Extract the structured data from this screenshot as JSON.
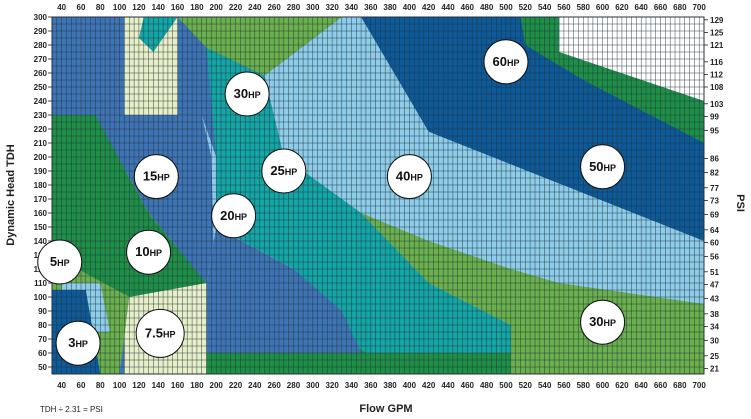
{
  "chart_data": {
    "type": "heatmap",
    "xlabel": "Flow GPM",
    "ylabel": "Dynamic Head TDH",
    "y2label": "PSI",
    "footnote": "TDH ÷ 2.31 = PSI",
    "xlim": [
      30,
      705
    ],
    "ylim": [
      45,
      300
    ],
    "x_ticks": [
      "40",
      "60",
      "80",
      "100",
      "120",
      "140",
      "160",
      "180",
      "200",
      "220",
      "240",
      "260",
      "280",
      "300",
      "320",
      "340",
      "360",
      "380",
      "400",
      "420",
      "440",
      "460",
      "480",
      "500",
      "520",
      "540",
      "560",
      "580",
      "600",
      "620",
      "640",
      "660",
      "680",
      "700"
    ],
    "y_ticks": [
      "300",
      "290",
      "280",
      "270",
      "260",
      "250",
      "240",
      "230",
      "220",
      "210",
      "200",
      "190",
      "180",
      "170",
      "160",
      "150",
      "140",
      "130",
      "120",
      "110",
      "100",
      "90",
      "80",
      "70",
      "60",
      "50"
    ],
    "psi_ticks": [
      {
        "label": "129",
        "tdh": 298
      },
      {
        "label": "125",
        "tdh": 289
      },
      {
        "label": "121",
        "tdh": 280
      },
      {
        "label": "116",
        "tdh": 268
      },
      {
        "label": "112",
        "tdh": 259
      },
      {
        "label": "108",
        "tdh": 250
      },
      {
        "label": "103",
        "tdh": 238
      },
      {
        "label": "99",
        "tdh": 229
      },
      {
        "label": "95",
        "tdh": 219
      },
      {
        "label": "86",
        "tdh": 199
      },
      {
        "label": "82",
        "tdh": 189
      },
      {
        "label": "77",
        "tdh": 178
      },
      {
        "label": "73",
        "tdh": 169
      },
      {
        "label": "69",
        "tdh": 159
      },
      {
        "label": "64",
        "tdh": 148
      },
      {
        "label": "60",
        "tdh": 139
      },
      {
        "label": "56",
        "tdh": 129
      },
      {
        "label": "51",
        "tdh": 118
      },
      {
        "label": "47",
        "tdh": 109
      },
      {
        "label": "43",
        "tdh": 99
      },
      {
        "label": "38",
        "tdh": 88
      },
      {
        "label": "34",
        "tdh": 79
      },
      {
        "label": "30",
        "tdh": 69
      },
      {
        "label": "25",
        "tdh": 58
      },
      {
        "label": "21",
        "tdh": 49
      }
    ],
    "colors": {
      "mid_blue": "#3d74b6",
      "dark_blue": "#0c5a9a",
      "green_med": "#6ab04c",
      "green_dark": "#1d8f46",
      "teal": "#12a6a6",
      "light_blue": "#8dcdea",
      "cream": "#e6efc8",
      "white": "#ffffff",
      "grid": "#26323a"
    },
    "regions": [
      {
        "color": "mid_blue",
        "points": [
          [
            30,
            300
          ],
          [
            105,
            300
          ],
          [
            105,
            45
          ],
          [
            30,
            45
          ]
        ]
      },
      {
        "color": "cream",
        "points": [
          [
            105,
            300
          ],
          [
            160,
            300
          ],
          [
            160,
            45
          ],
          [
            105,
            45
          ]
        ]
      },
      {
        "color": "teal",
        "points": [
          [
            125,
            300
          ],
          [
            160,
            300
          ],
          [
            135,
            275
          ],
          [
            120,
            285
          ]
        ]
      },
      {
        "color": "green_med",
        "points": [
          [
            160,
            300
          ],
          [
            330,
            300
          ],
          [
            250,
            258
          ],
          [
            190,
            278
          ]
        ]
      },
      {
        "color": "light_blue",
        "points": [
          [
            330,
            300
          ],
          [
            350,
            300
          ],
          [
            440,
            200
          ],
          [
            270,
            200
          ],
          [
            250,
            258
          ]
        ]
      },
      {
        "color": "teal",
        "points": [
          [
            190,
            278
          ],
          [
            250,
            258
          ],
          [
            270,
            200
          ],
          [
            200,
            200
          ]
        ]
      },
      {
        "color": "dark_blue",
        "points": [
          [
            350,
            300
          ],
          [
            555,
            300
          ],
          [
            555,
            275
          ],
          [
            705,
            240
          ],
          [
            705,
            140
          ],
          [
            420,
            218
          ]
        ]
      },
      {
        "color": "green_dark",
        "points": [
          [
            515,
            300
          ],
          [
            555,
            300
          ],
          [
            555,
            275
          ],
          [
            705,
            240
          ],
          [
            705,
            210
          ],
          [
            580,
            255
          ],
          [
            520,
            280
          ]
        ]
      },
      {
        "color": "green_dark",
        "points": [
          [
            30,
            230
          ],
          [
            75,
            230
          ],
          [
            130,
            160
          ],
          [
            190,
            110
          ],
          [
            190,
            45
          ],
          [
            130,
            45
          ],
          [
            110,
            100
          ],
          [
            30,
            130
          ]
        ]
      },
      {
        "color": "mid_blue",
        "points": [
          [
            75,
            230
          ],
          [
            185,
            230
          ],
          [
            195,
            200
          ],
          [
            190,
            110
          ],
          [
            130,
            160
          ]
        ]
      },
      {
        "color": "green_med",
        "points": [
          [
            30,
            130
          ],
          [
            110,
            100
          ],
          [
            100,
            45
          ],
          [
            30,
            45
          ]
        ]
      },
      {
        "color": "light_blue",
        "points": [
          [
            40,
            110
          ],
          [
            80,
            110
          ],
          [
            90,
            75
          ],
          [
            40,
            75
          ]
        ]
      },
      {
        "color": "dark_blue",
        "points": [
          [
            30,
            105
          ],
          [
            65,
            105
          ],
          [
            80,
            45
          ],
          [
            30,
            45
          ]
        ]
      },
      {
        "color": "cream",
        "points": [
          [
            110,
            100
          ],
          [
            190,
            110
          ],
          [
            190,
            45
          ],
          [
            115,
            45
          ]
        ]
      },
      {
        "color": "light_blue",
        "points": [
          [
            185,
            230
          ],
          [
            200,
            200
          ],
          [
            270,
            200
          ],
          [
            440,
            200
          ],
          [
            420,
            218
          ],
          [
            705,
            140
          ],
          [
            705,
            60
          ],
          [
            555,
            60
          ],
          [
            350,
            60
          ],
          [
            200,
            60
          ],
          [
            195,
            200
          ]
        ]
      },
      {
        "color": "teal",
        "points": [
          [
            200,
            200
          ],
          [
            270,
            200
          ],
          [
            350,
            160
          ],
          [
            420,
            110
          ],
          [
            505,
            80
          ],
          [
            505,
            60
          ],
          [
            350,
            60
          ],
          [
            280,
            120
          ],
          [
            200,
            150
          ]
        ]
      },
      {
        "color": "cream",
        "points": [
          [
            200,
            150
          ],
          [
            280,
            120
          ],
          [
            350,
            60
          ],
          [
            505,
            60
          ],
          [
            505,
            45
          ],
          [
            190,
            45
          ],
          [
            190,
            110
          ]
        ]
      },
      {
        "color": "green_dark",
        "points": [
          [
            190,
            110
          ],
          [
            280,
            95
          ],
          [
            355,
            60
          ],
          [
            505,
            60
          ],
          [
            505,
            45
          ],
          [
            190,
            45
          ]
        ]
      },
      {
        "color": "mid_blue",
        "points": [
          [
            200,
            150
          ],
          [
            280,
            120
          ],
          [
            330,
            90
          ],
          [
            350,
            60
          ],
          [
            190,
            60
          ],
          [
            190,
            110
          ]
        ]
      },
      {
        "color": "green_med",
        "points": [
          [
            350,
            160
          ],
          [
            420,
            140
          ],
          [
            505,
            120
          ],
          [
            555,
            110
          ],
          [
            705,
            95
          ],
          [
            705,
            45
          ],
          [
            505,
            45
          ],
          [
            505,
            80
          ],
          [
            420,
            110
          ]
        ]
      },
      {
        "color": "white",
        "points": [
          [
            555,
            300
          ],
          [
            705,
            300
          ],
          [
            705,
            240
          ],
          [
            555,
            275
          ]
        ]
      }
    ],
    "labels": [
      {
        "text": "3HP",
        "x": 57,
        "y": 67,
        "r": 22
      },
      {
        "text": "5HP",
        "x": 38,
        "y": 125,
        "r": 22
      },
      {
        "text": "7.5HP",
        "x": 142,
        "y": 74,
        "r": 24
      },
      {
        "text": "10HP",
        "x": 130,
        "y": 132,
        "r": 22
      },
      {
        "text": "15HP",
        "x": 138,
        "y": 186,
        "r": 22
      },
      {
        "text": "20HP",
        "x": 218,
        "y": 158,
        "r": 22
      },
      {
        "text": "25HP",
        "x": 270,
        "y": 190,
        "r": 22
      },
      {
        "text": "30HP",
        "x": 232,
        "y": 245,
        "r": 22
      },
      {
        "text": "40HP",
        "x": 400,
        "y": 186,
        "r": 22
      },
      {
        "text": "50HP",
        "x": 600,
        "y": 193,
        "r": 22
      },
      {
        "text": "60HP",
        "x": 500,
        "y": 268,
        "r": 22
      },
      {
        "text": "30HP",
        "x": 600,
        "y": 82,
        "r": 22
      }
    ]
  }
}
